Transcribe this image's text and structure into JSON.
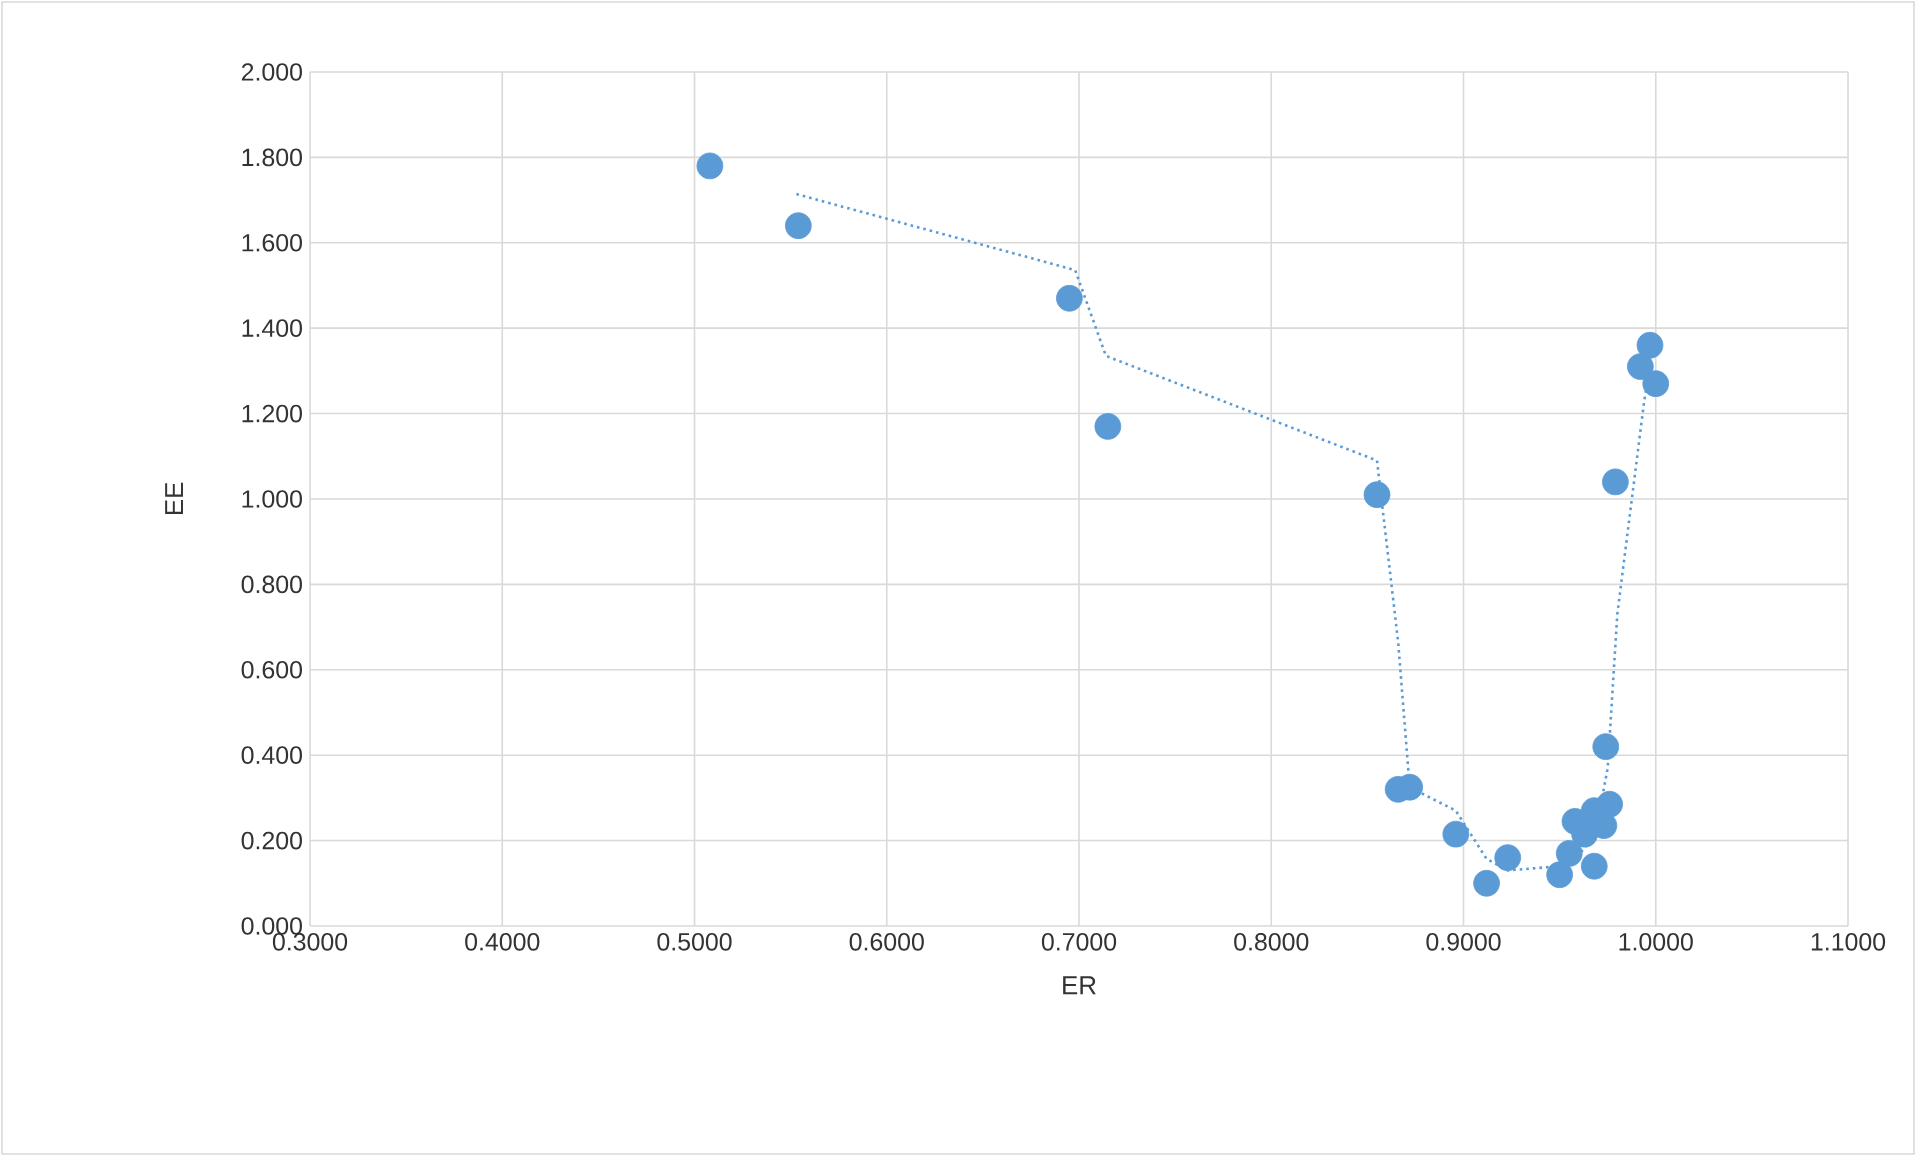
{
  "chart_data": {
    "type": "scatter",
    "xlabel": "ER",
    "ylabel": "EE",
    "xlim": [
      0.3,
      1.1
    ],
    "ylim": [
      0,
      2
    ],
    "xticks": [
      {
        "value": 0.3,
        "label": "0.3000"
      },
      {
        "value": 0.4,
        "label": "0.4000"
      },
      {
        "value": 0.5,
        "label": "0.5000"
      },
      {
        "value": 0.6,
        "label": "0.6000"
      },
      {
        "value": 0.7,
        "label": "0.7000"
      },
      {
        "value": 0.8,
        "label": "0.8000"
      },
      {
        "value": 0.9,
        "label": "0.9000"
      },
      {
        "value": 1.0,
        "label": "1.0000"
      },
      {
        "value": 1.1,
        "label": "1.1000"
      }
    ],
    "yticks": [
      {
        "value": 0,
        "label": "0.000"
      },
      {
        "value": 0.2,
        "label": "0.200"
      },
      {
        "value": 0.4,
        "label": "0.400"
      },
      {
        "value": 0.6,
        "label": "0.600"
      },
      {
        "value": 0.8,
        "label": "0.800"
      },
      {
        "value": 1.0,
        "label": "1.000"
      },
      {
        "value": 1.2,
        "label": "1.200"
      },
      {
        "value": 1.4,
        "label": "1.400"
      },
      {
        "value": 1.6,
        "label": "1.600"
      },
      {
        "value": 1.8,
        "label": "1.800"
      },
      {
        "value": 2.0,
        "label": "2.000"
      }
    ],
    "grid": true,
    "series": [
      {
        "color": "#5b9bd5",
        "marker": "circle",
        "x": [
          0.508,
          0.554,
          0.695,
          0.715,
          0.855,
          0.997,
          0.992,
          1.0,
          0.979,
          0.974,
          0.866,
          0.872,
          0.896,
          0.912,
          0.923,
          0.95,
          0.968,
          0.955,
          0.958,
          0.968,
          0.976,
          0.973,
          0.963
        ],
        "values": [
          1.78,
          1.64,
          1.47,
          1.17,
          1.01,
          1.36,
          1.31,
          1.27,
          1.04,
          0.42,
          0.32,
          0.325,
          0.215,
          0.1,
          0.16,
          0.12,
          0.14,
          0.17,
          0.245,
          0.27,
          0.285,
          0.235,
          0.215
        ]
      },
      {
        "type": "line",
        "color": "#5b9bd5",
        "marker": "none",
        "line_style": "dotted",
        "x": [
          0.553,
          0.698,
          0.714,
          0.855,
          0.866,
          0.872,
          0.896,
          0.912,
          0.923,
          0.95,
          0.963,
          0.97,
          0.975,
          0.98,
          0.994,
          0.997,
          1.0
        ],
        "values": [
          1.714,
          1.536,
          1.335,
          1.09,
          0.665,
          0.325,
          0.27,
          0.157,
          0.13,
          0.14,
          0.18,
          0.25,
          0.37,
          0.73,
          1.23,
          1.31,
          1.29
        ]
      }
    ]
  }
}
